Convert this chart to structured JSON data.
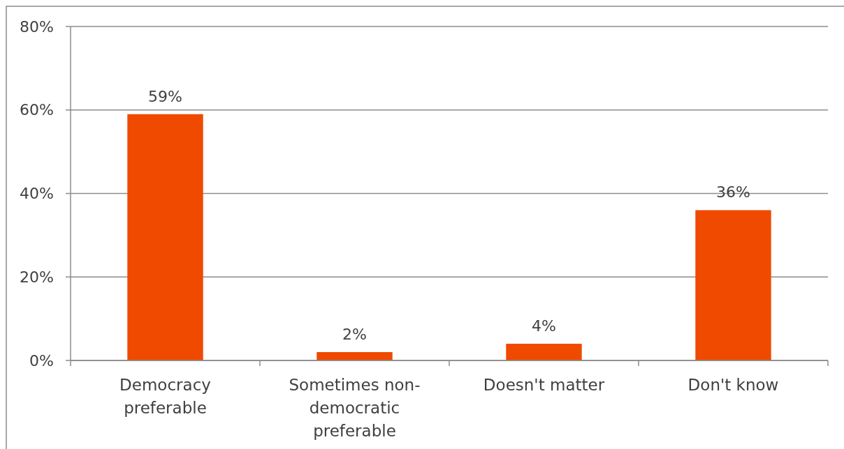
{
  "chart_data": {
    "type": "bar",
    "categories": [
      "Democracy preferable",
      "Sometimes non-democratic preferable",
      "Doesn't matter",
      "Don't know"
    ],
    "values": [
      59,
      2,
      4,
      36
    ],
    "color": "#ef4a00",
    "value_labels": [
      "59%",
      "2%",
      "4%",
      "36%"
    ],
    "ylim": [
      0,
      80
    ],
    "yticks": [
      {
        "value": 0,
        "label": "0%"
      },
      {
        "value": 20,
        "label": "20%"
      },
      {
        "value": 40,
        "label": "40%"
      },
      {
        "value": 60,
        "label": "60%"
      },
      {
        "value": 80,
        "label": "80%"
      }
    ],
    "grid": "y"
  }
}
